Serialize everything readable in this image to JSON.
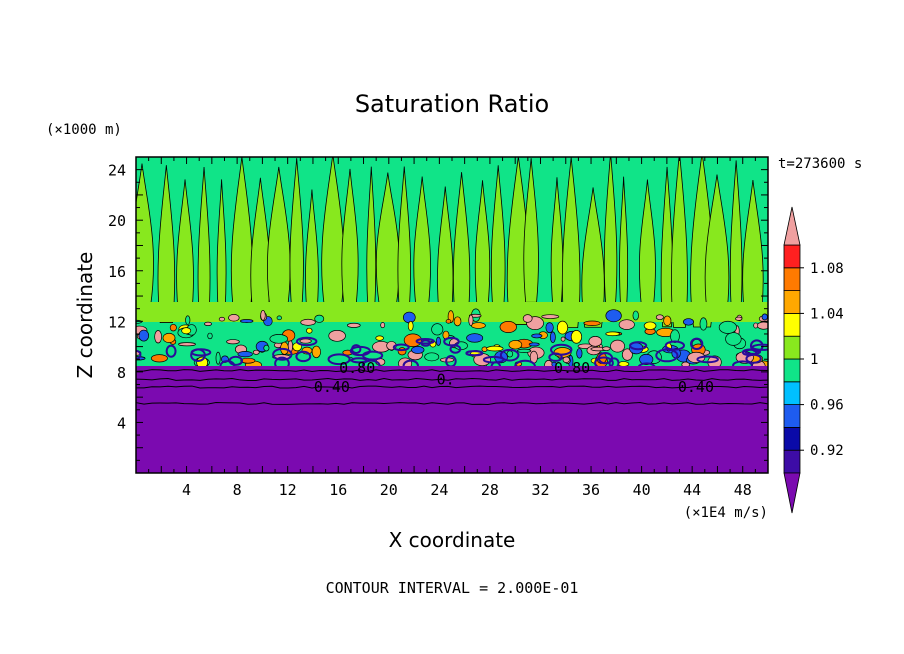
{
  "chart_data": {
    "type": "heatmap",
    "title": "Saturation Ratio",
    "xlabel": "X coordinate",
    "ylabel": "Z coordinate",
    "x_unit": "(×1E4 m/s)",
    "y_unit": "(×1000 m)",
    "time_label": "t=273600 s",
    "footer": "CONTOUR INTERVAL = 2.000E-01",
    "xlim": [
      0,
      50
    ],
    "ylim": [
      0,
      25
    ],
    "x_ticks": [
      4,
      8,
      12,
      16,
      20,
      24,
      28,
      32,
      36,
      40,
      44,
      48
    ],
    "y_ticks": [
      4,
      8,
      12,
      16,
      20,
      24
    ],
    "colorbar": {
      "levels": [
        0.9,
        0.92,
        0.94,
        0.96,
        0.98,
        1.0,
        1.02,
        1.04,
        1.06,
        1.08,
        1.1
      ],
      "tick_labels": [
        "0.92",
        "0.96",
        "1",
        "1.04",
        "1.08"
      ],
      "tick_values": [
        0.92,
        0.96,
        1.0,
        1.04,
        1.08
      ],
      "colors": [
        "#3d0ca6",
        "#0a0aa8",
        "#1e5cf0",
        "#00c0ff",
        "#10e488",
        "#88e81e",
        "#ffff00",
        "#ffa800",
        "#ff7a00",
        "#ff2020"
      ],
      "under_color": "#7b0ab0",
      "over_color": "#f0a0a0"
    },
    "contour_labels": [
      {
        "text": "0.40",
        "x": 15.5,
        "y": 6.8
      },
      {
        "text": "0.40",
        "x": 44.3,
        "y": 6.8
      },
      {
        "text": "0.80",
        "x": 17.5,
        "y": 8.3
      },
      {
        "text": "0.80",
        "x": 34.5,
        "y": 8.3
      },
      {
        "text": "0.",
        "x": 24.5,
        "y": 7.4
      }
    ]
  }
}
